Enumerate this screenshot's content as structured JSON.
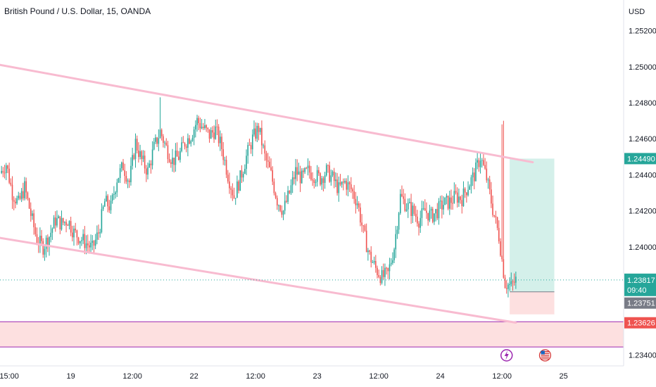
{
  "header": {
    "symbol": "British Pound / U.S. Dollar",
    "interval": "15",
    "broker": "OANDA"
  },
  "chart_data": {
    "type": "candlestick",
    "currency": "USD",
    "y_ticks": [
      "1.25200",
      "1.25000",
      "1.24800",
      "1.24600",
      "1.24400",
      "1.24200",
      "1.24000",
      "1.23400"
    ],
    "y_tick_values": [
      1.252,
      1.25,
      1.248,
      1.246,
      1.244,
      1.242,
      1.24,
      1.234
    ],
    "ylim": [
      1.2334,
      1.2537
    ],
    "x_ticks": [
      "15:00",
      "19",
      "12:00",
      "22",
      "12:00",
      "23",
      "12:00",
      "24",
      "12:00",
      "25"
    ],
    "x_tick_index": [
      6,
      46,
      86,
      126,
      166,
      206,
      246,
      286,
      326,
      366
    ],
    "xlim": [
      0,
      405
    ],
    "trend_channel": {
      "upper": [
        [
          0,
          1.2501
        ],
        [
          346,
          1.2447
        ]
      ],
      "lower": [
        [
          0,
          1.2405
        ],
        [
          335,
          1.2358
        ]
      ]
    },
    "support_zone": [
      1.23445,
      1.23585
    ],
    "position": {
      "entry_start": 331,
      "entry_end": 360,
      "take_profit": 1.2449,
      "entry": 1.23751,
      "stop_loss": 1.23626
    },
    "price_labels": {
      "take_profit": "1.24490",
      "last": "1.23817",
      "countdown": "09:40",
      "entry": "1.23751",
      "stop": "1.23626"
    },
    "last_price": 1.23817,
    "colors": {
      "up": "#26a69a",
      "down": "#ef5350",
      "channel": "#f8bbd0",
      "zone_fill": "#fde0e0",
      "zone_border": "#9c27b0",
      "profit_fill": "#d4f0ea",
      "loss_fill": "#fde0e0"
    },
    "events": [
      {
        "icon": "lightning-icon",
        "index": 329
      },
      {
        "icon": "us-flag-icon",
        "index": 354
      }
    ],
    "close_path": [
      [
        0,
        1.2441
      ],
      [
        4,
        1.2446
      ],
      [
        8,
        1.243
      ],
      [
        12,
        1.2424
      ],
      [
        16,
        1.2433
      ],
      [
        20,
        1.2418
      ],
      [
        24,
        1.2404
      ],
      [
        28,
        1.24
      ],
      [
        32,
        1.2406
      ],
      [
        36,
        1.2415
      ],
      [
        40,
        1.2413
      ],
      [
        44,
        1.2415
      ],
      [
        48,
        1.2408
      ],
      [
        52,
        1.2405
      ],
      [
        56,
        1.2402
      ],
      [
        60,
        1.2399
      ],
      [
        64,
        1.2408
      ],
      [
        68,
        1.2425
      ],
      [
        72,
        1.2422
      ],
      [
        76,
        1.2438
      ],
      [
        80,
        1.2445
      ],
      [
        84,
        1.2436
      ],
      [
        88,
        1.2458
      ],
      [
        92,
        1.2448
      ],
      [
        96,
        1.2442
      ],
      [
        100,
        1.2455
      ],
      [
        104,
        1.2464
      ],
      [
        108,
        1.2455
      ],
      [
        112,
        1.2448
      ],
      [
        116,
        1.245
      ],
      [
        120,
        1.2458
      ],
      [
        124,
        1.2462
      ],
      [
        128,
        1.247
      ],
      [
        132,
        1.2466
      ],
      [
        136,
        1.2462
      ],
      [
        140,
        1.2465
      ],
      [
        144,
        1.2455
      ],
      [
        148,
        1.244
      ],
      [
        152,
        1.2428
      ],
      [
        156,
        1.2438
      ],
      [
        160,
        1.245
      ],
      [
        164,
        1.246
      ],
      [
        168,
        1.2466
      ],
      [
        172,
        1.245
      ],
      [
        176,
        1.244
      ],
      [
        180,
        1.2426
      ],
      [
        184,
        1.242
      ],
      [
        188,
        1.243
      ],
      [
        192,
        1.2442
      ],
      [
        196,
        1.2438
      ],
      [
        200,
        1.2442
      ],
      [
        204,
        1.244
      ],
      [
        208,
        1.2438
      ],
      [
        212,
        1.2442
      ],
      [
        216,
        1.2438
      ],
      [
        220,
        1.2432
      ],
      [
        224,
        1.2436
      ],
      [
        228,
        1.2432
      ],
      [
        232,
        1.2425
      ],
      [
        236,
        1.2408
      ],
      [
        240,
        1.2395
      ],
      [
        244,
        1.2388
      ],
      [
        248,
        1.2383
      ],
      [
        252,
        1.2385
      ],
      [
        256,
        1.24
      ],
      [
        260,
        1.2428
      ],
      [
        264,
        1.2423
      ],
      [
        268,
        1.242
      ],
      [
        272,
        1.2415
      ],
      [
        276,
        1.242
      ],
      [
        280,
        1.2417
      ],
      [
        284,
        1.242
      ],
      [
        288,
        1.2424
      ],
      [
        292,
        1.2425
      ],
      [
        296,
        1.2428
      ],
      [
        300,
        1.2427
      ],
      [
        304,
        1.2434
      ],
      [
        308,
        1.244
      ],
      [
        312,
        1.245
      ],
      [
        316,
        1.2438
      ],
      [
        320,
        1.2421
      ],
      [
        324,
        1.2406
      ],
      [
        328,
        1.238
      ],
      [
        332,
        1.2378
      ],
      [
        335,
        1.23817
      ]
    ]
  }
}
